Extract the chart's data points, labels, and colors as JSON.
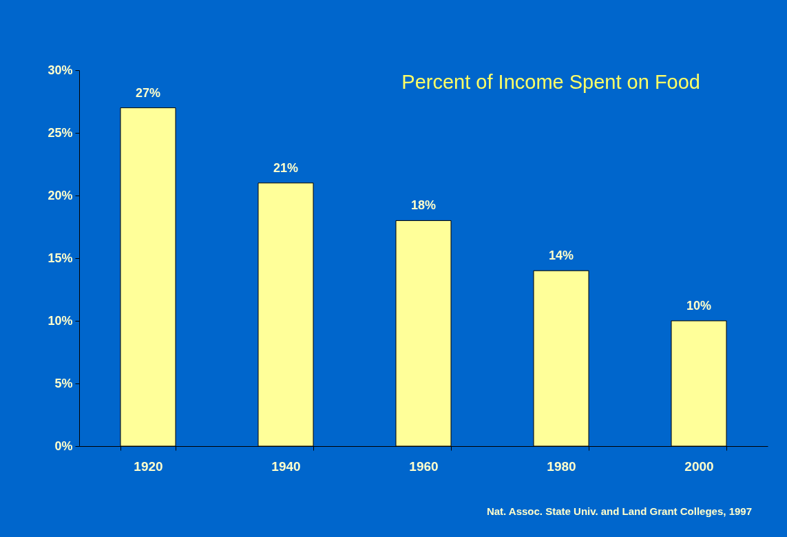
{
  "chart_data": {
    "type": "bar",
    "title": "Percent of Income Spent on Food",
    "categories": [
      "1920",
      "1940",
      "1960",
      "1980",
      "2000"
    ],
    "values": [
      27,
      21,
      18,
      14,
      10
    ],
    "color": "#ffff99",
    "value_labels": [
      "27%",
      "21%",
      "18%",
      "14%",
      "10%"
    ],
    "ylim": [
      0,
      30
    ],
    "yticks": [
      {
        "value": 0,
        "label": "0%"
      },
      {
        "value": 5,
        "label": "5%"
      },
      {
        "value": 10,
        "label": "10%"
      },
      {
        "value": 15,
        "label": "15%"
      },
      {
        "value": 20,
        "label": "20%"
      },
      {
        "value": 25,
        "label": "25%"
      },
      {
        "value": 30,
        "label": "30%"
      }
    ],
    "grid": false,
    "annotations": [
      "Nat. Assoc. State Univ. and Land Grant Colleges, 1997"
    ]
  }
}
